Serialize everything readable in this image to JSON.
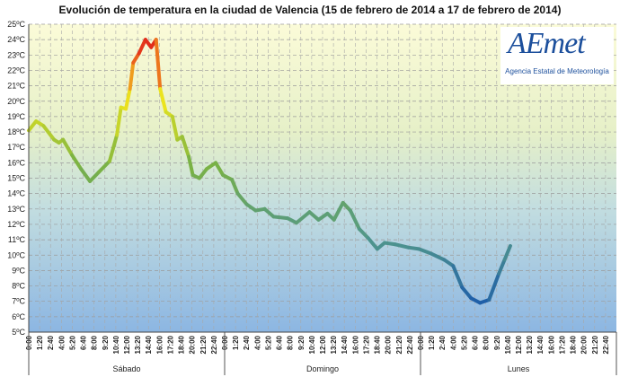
{
  "chart_data": {
    "type": "line",
    "title": "Evolución de temperatura en la ciudad de Valencia (15  de febrero de 2014 a 17 de febrero de 2014)",
    "ylim": [
      5,
      25
    ],
    "y_tick_labels": [
      "5ºC",
      "6ºC",
      "7ºC",
      "8ºC",
      "9ºC",
      "10ºC",
      "11ºC",
      "12ºC",
      "13ºC",
      "14ºC",
      "15ºC",
      "16ºC",
      "17ºC",
      "18ºC",
      "19ºC",
      "20ºC",
      "21ºC",
      "22ºC",
      "23ºC",
      "24ºC",
      "25ºC"
    ],
    "x_tick_labels": [
      "0:00",
      "1:20",
      "2:40",
      "4:00",
      "5:20",
      "6:40",
      "8:00",
      "9:20",
      "10:40",
      "12:00",
      "13:20",
      "14:40",
      "16:00",
      "17:20",
      "18:40",
      "20:00",
      "21:20",
      "22:40"
    ],
    "days": [
      "Sábado",
      "Domingo",
      "Lunes"
    ],
    "grid": true,
    "color_scale": {
      "cold": "#1f5fa8",
      "mid": "#7cb342",
      "warm": "#f2e600",
      "hot": "#e0201a"
    },
    "series": [
      {
        "x_hours": [
          0,
          0.9,
          1.8,
          3.1,
          3.7,
          4.2,
          5.3,
          6.4,
          7.5,
          8.6,
          9.9,
          10.8,
          11.3,
          11.9,
          12.4,
          12.8,
          13.5,
          14.3,
          15.0,
          15.6,
          16.1,
          16.8,
          17.6,
          18.2,
          18.8,
          19.6,
          20.1,
          20.9,
          21.8,
          22.9,
          23.8,
          24.9,
          25.6,
          26.7,
          27.8,
          28.9,
          30.0,
          31.7,
          32.8,
          34.4,
          35.5,
          36.6,
          37.4,
          38.5,
          39.4,
          40.5,
          41.6,
          42.7,
          43.6,
          44.9,
          46.5,
          47.8,
          49.3,
          50.9,
          52.0,
          53.1,
          54.2,
          55.3,
          56.4,
          57.6,
          58.3,
          59.0
        ],
        "temperature_c": [
          18.1,
          18.7,
          18.4,
          17.5,
          17.3,
          17.5,
          16.5,
          15.6,
          14.8,
          15.4,
          16.1,
          17.8,
          19.6,
          19.5,
          20.8,
          22.5,
          23.1,
          24.0,
          23.5,
          24.0,
          20.8,
          19.3,
          19.0,
          17.5,
          17.7,
          16.4,
          15.2,
          15.0,
          15.6,
          16.0,
          15.2,
          14.9,
          14.0,
          13.3,
          12.9,
          13.0,
          12.5,
          12.4,
          12.1,
          12.8,
          12.3,
          12.7,
          12.3,
          13.4,
          12.9,
          11.7,
          11.1,
          10.4,
          10.8,
          10.7,
          10.5,
          10.4,
          10.1,
          9.7,
          9.3,
          7.9,
          7.2,
          6.9,
          7.1,
          8.8,
          9.7,
          10.6
        ]
      }
    ]
  },
  "logo": {
    "word": "AEmet",
    "subtitle": "Agencia Estatal de Meteorología"
  }
}
